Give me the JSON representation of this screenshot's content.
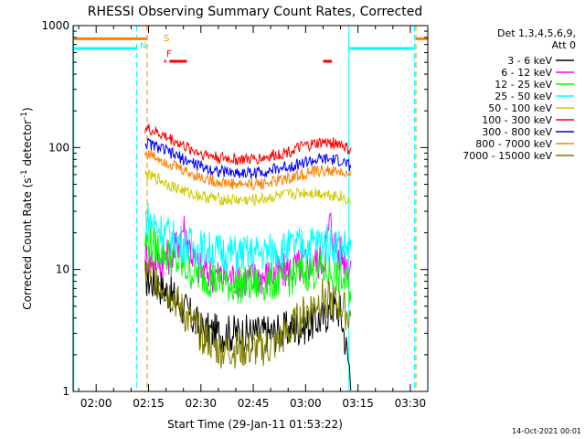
{
  "chart_data": {
    "type": "line",
    "title": "RHESSI Observing Summary Count Rates, Corrected",
    "xlabel": "Start Time (29-Jan-11 01:53:22)",
    "ylabel_main": "Corrected Count Rate (s",
    "ylabel_sup1": "-1",
    "ylabel_mid": " detector",
    "ylabel_sup2": "-1",
    "ylabel_end": ")",
    "y_scale": "log",
    "ylim": [
      1,
      1000
    ],
    "xlim_minutes": [
      113.4,
      215
    ],
    "x_ticks": [
      {
        "label": "02:00",
        "m": 120
      },
      {
        "label": "02:15",
        "m": 135
      },
      {
        "label": "02:30",
        "m": 150
      },
      {
        "label": "02:45",
        "m": 165
      },
      {
        "label": "03:00",
        "m": 180
      },
      {
        "label": "03:15",
        "m": 195
      },
      {
        "label": "03:30",
        "m": 210
      }
    ],
    "y_ticks": [
      {
        "label": "1",
        "v": 1
      },
      {
        "label": "10",
        "v": 10
      },
      {
        "label": "100",
        "v": 100
      },
      {
        "label": "1000",
        "v": 1000
      }
    ],
    "legend_header": [
      "Det 1,3,4,5,6,9,",
      "Att 0"
    ],
    "footer_date": "14-Oct-2021 00:01",
    "markers": {
      "S": "S",
      "N": "N",
      "F": "F"
    },
    "series": [
      {
        "name": "3 - 6 keV",
        "color": "#000000",
        "points": [
          [
            134,
            8.5
          ],
          [
            138,
            7.5
          ],
          [
            142,
            6
          ],
          [
            146,
            4.5
          ],
          [
            150,
            3.2
          ],
          [
            155,
            3
          ],
          [
            160,
            3
          ],
          [
            165,
            3
          ],
          [
            170,
            3
          ],
          [
            175,
            3.2
          ],
          [
            180,
            3.5
          ],
          [
            185,
            4
          ],
          [
            188,
            5
          ],
          [
            190,
            4.5
          ],
          [
            193,
            1.3
          ]
        ]
      },
      {
        "name": "6 - 12 keV",
        "color": "#ff00ff",
        "points": [
          [
            134,
            13
          ],
          [
            138,
            12
          ],
          [
            142,
            13
          ],
          [
            145,
            23
          ],
          [
            148,
            12
          ],
          [
            150,
            10
          ],
          [
            155,
            9
          ],
          [
            160,
            8.5
          ],
          [
            165,
            8.5
          ],
          [
            170,
            9
          ],
          [
            175,
            10
          ],
          [
            180,
            11
          ],
          [
            185,
            12
          ],
          [
            187,
            25
          ],
          [
            189,
            14
          ],
          [
            193,
            11
          ]
        ]
      },
      {
        "name": "12 - 25 keV",
        "color": "#00ff00",
        "points": [
          [
            134,
            17
          ],
          [
            138,
            15
          ],
          [
            142,
            12
          ],
          [
            146,
            10
          ],
          [
            150,
            9
          ],
          [
            155,
            8
          ],
          [
            160,
            7.5
          ],
          [
            165,
            7.5
          ],
          [
            170,
            8
          ],
          [
            175,
            8.5
          ],
          [
            180,
            9.5
          ],
          [
            185,
            10
          ],
          [
            189,
            9
          ],
          [
            193,
            7
          ]
        ]
      },
      {
        "name": "25 - 50 keV",
        "color": "#00ffff",
        "points": [
          [
            134,
            27
          ],
          [
            138,
            22
          ],
          [
            142,
            18
          ],
          [
            146,
            16
          ],
          [
            150,
            15
          ],
          [
            155,
            14
          ],
          [
            160,
            13.5
          ],
          [
            165,
            13.5
          ],
          [
            170,
            14
          ],
          [
            175,
            15
          ],
          [
            180,
            16
          ],
          [
            185,
            17
          ],
          [
            189,
            16
          ],
          [
            193,
            15
          ]
        ]
      },
      {
        "name": "50 - 100 keV",
        "color": "#cccc00",
        "points": [
          [
            134,
            60
          ],
          [
            138,
            55
          ],
          [
            142,
            48
          ],
          [
            146,
            43
          ],
          [
            150,
            40
          ],
          [
            155,
            38
          ],
          [
            160,
            37
          ],
          [
            165,
            37
          ],
          [
            170,
            39
          ],
          [
            175,
            41
          ],
          [
            180,
            43
          ],
          [
            185,
            42
          ],
          [
            190,
            40
          ],
          [
            193,
            36
          ]
        ]
      },
      {
        "name": "100 - 300 keV",
        "color": "#ff0000",
        "points": [
          [
            134,
            145
          ],
          [
            138,
            130
          ],
          [
            142,
            115
          ],
          [
            146,
            100
          ],
          [
            150,
            90
          ],
          [
            155,
            83
          ],
          [
            160,
            80
          ],
          [
            165,
            80
          ],
          [
            170,
            85
          ],
          [
            175,
            93
          ],
          [
            180,
            103
          ],
          [
            185,
            110
          ],
          [
            190,
            108
          ],
          [
            193,
            92
          ]
        ]
      },
      {
        "name": "300 - 800 keV",
        "color": "#0000ff",
        "points": [
          [
            134,
            110
          ],
          [
            138,
            100
          ],
          [
            142,
            88
          ],
          [
            146,
            78
          ],
          [
            150,
            70
          ],
          [
            155,
            64
          ],
          [
            160,
            62
          ],
          [
            165,
            62
          ],
          [
            170,
            65
          ],
          [
            175,
            70
          ],
          [
            180,
            76
          ],
          [
            185,
            80
          ],
          [
            190,
            78
          ],
          [
            193,
            70
          ]
        ]
      },
      {
        "name": "800 - 7000 keV",
        "color": "#ff8000",
        "points": [
          [
            134,
            90
          ],
          [
            138,
            82
          ],
          [
            142,
            72
          ],
          [
            146,
            63
          ],
          [
            150,
            57
          ],
          [
            155,
            52
          ],
          [
            160,
            50
          ],
          [
            165,
            50
          ],
          [
            170,
            52
          ],
          [
            175,
            56
          ],
          [
            180,
            61
          ],
          [
            185,
            65
          ],
          [
            190,
            63
          ],
          [
            193,
            57
          ]
        ]
      },
      {
        "name": "7000 - 15000 keV",
        "color": "#808000",
        "points": [
          [
            134,
            10
          ],
          [
            138,
            8
          ],
          [
            142,
            6
          ],
          [
            146,
            4
          ],
          [
            150,
            3
          ],
          [
            155,
            2.2
          ],
          [
            160,
            2.2
          ],
          [
            165,
            2.2
          ],
          [
            170,
            2.3
          ],
          [
            175,
            3
          ],
          [
            180,
            4.5
          ],
          [
            185,
            6
          ],
          [
            190,
            5
          ],
          [
            193,
            4
          ]
        ]
      }
    ],
    "flag_bars": [
      {
        "name": "S",
        "color": "#ff8000",
        "v": 780,
        "segments": [
          [
            113.4,
            134.5
          ],
          [
            211.5,
            215
          ]
        ]
      },
      {
        "name": "N",
        "color": "#00ffff",
        "v": 650,
        "segments": [
          [
            113.4,
            131.5
          ],
          [
            192.5,
            211
          ]
        ]
      },
      {
        "name": "F",
        "color": "#ff0000",
        "v": 510,
        "segments": [
          [
            139.5,
            140
          ],
          [
            141,
            146
          ],
          [
            185,
            187.5
          ]
        ]
      }
    ],
    "vlines": [
      {
        "m": 113.6,
        "color": "#00ffff",
        "style": "solid"
      },
      {
        "m": 131.6,
        "color": "#00ffff",
        "style": "dash"
      },
      {
        "m": 134.6,
        "color": "#ff8000",
        "style": "dash"
      },
      {
        "m": 192.4,
        "color": "#00ffff",
        "style": "solid"
      },
      {
        "m": 211.2,
        "color": "#00ffff",
        "style": "dash"
      },
      {
        "m": 211.6,
        "color": "#ff8000",
        "style": "dash"
      }
    ]
  }
}
